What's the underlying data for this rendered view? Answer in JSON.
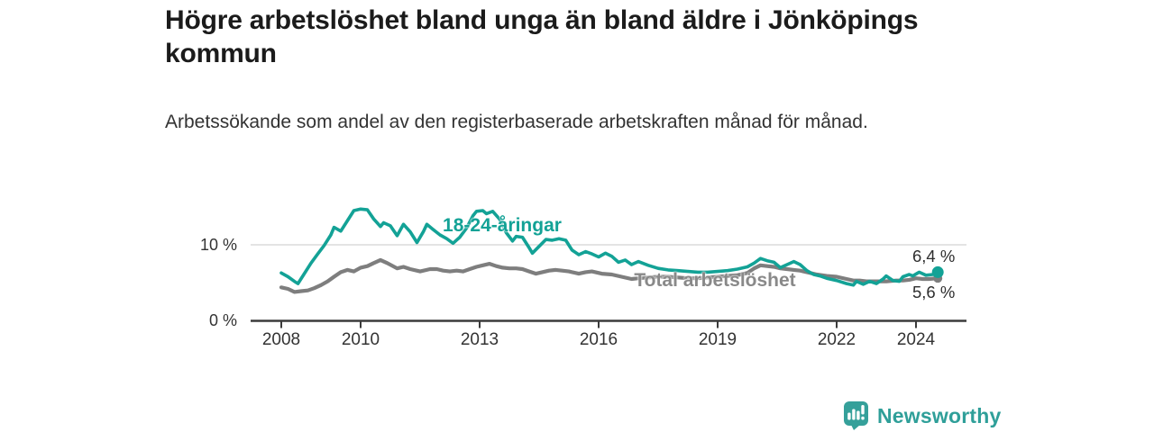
{
  "header": {
    "title": "Högre arbetslöshet bland unga än bland äldre i Jönköpings kommun",
    "subtitle": "Arbetssökande som andel av den registerbaserade arbetskraften månad för månad."
  },
  "chart": {
    "y_tick_top": "10 %",
    "y_tick_bottom": "0 %",
    "series_label_youth": "18-24-åringar",
    "series_label_total": "Total arbetslöshet",
    "end_value_youth": "6,4 %",
    "end_value_total": "5,6 %"
  },
  "footer": {
    "brand": "Newsworthy"
  },
  "colors": {
    "teal_line": "#13a296",
    "gray_line": "#7e7e7e",
    "gray_label": "#898989",
    "grid": "#dcdcdc",
    "axis": "#3b3b3b",
    "tick_text": "#333333",
    "logo_teal": "#35a09a"
  },
  "chart_data": {
    "type": "line",
    "title": "Högre arbetslöshet bland unga än bland äldre i Jönköpings kommun",
    "subtitle": "Arbetssökande som andel av den registerbaserade arbetskraften månad för månad.",
    "unit": "%",
    "xlim": [
      2008,
      2024.6
    ],
    "ylim": [
      0,
      16.5
    ],
    "x_ticks": [
      2008,
      2010,
      2013,
      2016,
      2019,
      2022,
      2024
    ],
    "y_ticks": [
      {
        "value": 0,
        "label": "0 %"
      },
      {
        "value": 10,
        "label": "10 %"
      }
    ],
    "grid": "single horizontal gridline at 10 %",
    "legend": "inline labels next to lines, end values labelled at last point",
    "series": [
      {
        "name": "Total arbetslöshet",
        "color": "#7e7e7e",
        "end_value": 5.6,
        "end_label": "5,6 %",
        "points": [
          [
            2008.0,
            4.4
          ],
          [
            2008.17,
            4.2
          ],
          [
            2008.33,
            3.8
          ],
          [
            2008.5,
            3.9
          ],
          [
            2008.67,
            4.0
          ],
          [
            2008.83,
            4.3
          ],
          [
            2009.0,
            4.7
          ],
          [
            2009.17,
            5.2
          ],
          [
            2009.33,
            5.8
          ],
          [
            2009.5,
            6.4
          ],
          [
            2009.67,
            6.7
          ],
          [
            2009.83,
            6.5
          ],
          [
            2010.0,
            7.0
          ],
          [
            2010.17,
            7.2
          ],
          [
            2010.33,
            7.6
          ],
          [
            2010.5,
            8.0
          ],
          [
            2010.67,
            7.6
          ],
          [
            2010.92,
            6.9
          ],
          [
            2011.08,
            7.1
          ],
          [
            2011.25,
            6.8
          ],
          [
            2011.5,
            6.5
          ],
          [
            2011.75,
            6.8
          ],
          [
            2011.92,
            6.8
          ],
          [
            2012.08,
            6.6
          ],
          [
            2012.25,
            6.5
          ],
          [
            2012.42,
            6.6
          ],
          [
            2012.58,
            6.5
          ],
          [
            2012.75,
            6.8
          ],
          [
            2012.92,
            7.1
          ],
          [
            2013.08,
            7.3
          ],
          [
            2013.25,
            7.5
          ],
          [
            2013.42,
            7.2
          ],
          [
            2013.58,
            7.0
          ],
          [
            2013.75,
            6.9
          ],
          [
            2013.92,
            6.9
          ],
          [
            2014.08,
            6.8
          ],
          [
            2014.25,
            6.5
          ],
          [
            2014.42,
            6.2
          ],
          [
            2014.58,
            6.4
          ],
          [
            2014.75,
            6.6
          ],
          [
            2014.92,
            6.7
          ],
          [
            2015.08,
            6.6
          ],
          [
            2015.25,
            6.5
          ],
          [
            2015.5,
            6.2
          ],
          [
            2015.67,
            6.4
          ],
          [
            2015.83,
            6.5
          ],
          [
            2016.08,
            6.2
          ],
          [
            2016.33,
            6.1
          ],
          [
            2016.58,
            5.8
          ],
          [
            2016.83,
            5.5
          ],
          [
            2017.0,
            5.6
          ],
          [
            2017.25,
            5.7
          ],
          [
            2017.5,
            5.8
          ],
          [
            2017.75,
            5.8
          ],
          [
            2018.0,
            5.7
          ],
          [
            2018.25,
            5.6
          ],
          [
            2018.5,
            5.6
          ],
          [
            2018.75,
            5.7
          ],
          [
            2019.0,
            5.8
          ],
          [
            2019.25,
            5.9
          ],
          [
            2019.5,
            6.0
          ],
          [
            2019.75,
            6.3
          ],
          [
            2019.92,
            6.9
          ],
          [
            2020.08,
            7.3
          ],
          [
            2020.25,
            7.2
          ],
          [
            2020.42,
            7.1
          ],
          [
            2020.58,
            6.9
          ],
          [
            2020.75,
            6.8
          ],
          [
            2020.92,
            6.7
          ],
          [
            2021.08,
            6.6
          ],
          [
            2021.25,
            6.4
          ],
          [
            2021.5,
            6.1
          ],
          [
            2021.75,
            5.9
          ],
          [
            2022.0,
            5.8
          ],
          [
            2022.25,
            5.5
          ],
          [
            2022.42,
            5.3
          ],
          [
            2022.58,
            5.3
          ],
          [
            2022.75,
            5.2
          ],
          [
            2023.0,
            5.2
          ],
          [
            2023.25,
            5.2
          ],
          [
            2023.5,
            5.3
          ],
          [
            2023.67,
            5.3
          ],
          [
            2023.83,
            5.4
          ],
          [
            2024.0,
            5.6
          ],
          [
            2024.17,
            5.5
          ],
          [
            2024.33,
            5.5
          ],
          [
            2024.55,
            5.6
          ]
        ]
      },
      {
        "name": "18-24-åringar",
        "color": "#13a296",
        "end_value": 6.4,
        "end_label": "6,4 %",
        "points": [
          [
            2008.0,
            6.3
          ],
          [
            2008.17,
            5.8
          ],
          [
            2008.33,
            5.2
          ],
          [
            2008.42,
            4.9
          ],
          [
            2008.58,
            6.2
          ],
          [
            2008.75,
            7.6
          ],
          [
            2008.92,
            8.8
          ],
          [
            2009.08,
            9.9
          ],
          [
            2009.25,
            11.3
          ],
          [
            2009.33,
            12.3
          ],
          [
            2009.5,
            11.8
          ],
          [
            2009.67,
            13.2
          ],
          [
            2009.83,
            14.5
          ],
          [
            2010.0,
            14.7
          ],
          [
            2010.17,
            14.6
          ],
          [
            2010.33,
            13.4
          ],
          [
            2010.5,
            12.4
          ],
          [
            2010.58,
            12.9
          ],
          [
            2010.75,
            12.5
          ],
          [
            2010.92,
            11.2
          ],
          [
            2011.08,
            12.7
          ],
          [
            2011.25,
            11.7
          ],
          [
            2011.42,
            10.3
          ],
          [
            2011.58,
            11.7
          ],
          [
            2011.67,
            12.7
          ],
          [
            2011.83,
            12.0
          ],
          [
            2012.0,
            11.3
          ],
          [
            2012.17,
            10.8
          ],
          [
            2012.33,
            10.2
          ],
          [
            2012.5,
            11.0
          ],
          [
            2012.67,
            12.2
          ],
          [
            2012.83,
            13.8
          ],
          [
            2012.92,
            14.4
          ],
          [
            2013.08,
            14.5
          ],
          [
            2013.17,
            14.1
          ],
          [
            2013.33,
            14.4
          ],
          [
            2013.5,
            13.4
          ],
          [
            2013.67,
            11.6
          ],
          [
            2013.83,
            10.5
          ],
          [
            2013.92,
            11.1
          ],
          [
            2014.08,
            11.0
          ],
          [
            2014.25,
            9.6
          ],
          [
            2014.33,
            8.9
          ],
          [
            2014.5,
            9.8
          ],
          [
            2014.67,
            10.7
          ],
          [
            2014.83,
            10.6
          ],
          [
            2015.0,
            10.8
          ],
          [
            2015.17,
            10.6
          ],
          [
            2015.33,
            9.3
          ],
          [
            2015.5,
            8.7
          ],
          [
            2015.67,
            9.1
          ],
          [
            2015.83,
            8.8
          ],
          [
            2016.0,
            8.4
          ],
          [
            2016.17,
            8.9
          ],
          [
            2016.33,
            8.5
          ],
          [
            2016.5,
            7.7
          ],
          [
            2016.67,
            8.0
          ],
          [
            2016.83,
            7.4
          ],
          [
            2017.0,
            7.8
          ],
          [
            2017.25,
            7.3
          ],
          [
            2017.5,
            6.9
          ],
          [
            2017.75,
            6.7
          ],
          [
            2018.0,
            6.6
          ],
          [
            2018.25,
            6.5
          ],
          [
            2018.5,
            6.4
          ],
          [
            2018.75,
            6.4
          ],
          [
            2019.0,
            6.5
          ],
          [
            2019.25,
            6.6
          ],
          [
            2019.5,
            6.8
          ],
          [
            2019.75,
            7.1
          ],
          [
            2019.92,
            7.6
          ],
          [
            2020.08,
            8.2
          ],
          [
            2020.25,
            7.9
          ],
          [
            2020.42,
            7.7
          ],
          [
            2020.58,
            7.0
          ],
          [
            2020.75,
            7.4
          ],
          [
            2020.92,
            7.8
          ],
          [
            2021.08,
            7.4
          ],
          [
            2021.25,
            6.6
          ],
          [
            2021.42,
            6.1
          ],
          [
            2021.58,
            5.9
          ],
          [
            2021.75,
            5.6
          ],
          [
            2022.0,
            5.3
          ],
          [
            2022.25,
            4.9
          ],
          [
            2022.42,
            4.7
          ],
          [
            2022.5,
            5.2
          ],
          [
            2022.67,
            4.8
          ],
          [
            2022.83,
            5.2
          ],
          [
            2023.0,
            4.9
          ],
          [
            2023.17,
            5.5
          ],
          [
            2023.25,
            5.9
          ],
          [
            2023.42,
            5.3
          ],
          [
            2023.58,
            5.2
          ],
          [
            2023.67,
            5.8
          ],
          [
            2023.83,
            6.1
          ],
          [
            2023.92,
            5.9
          ],
          [
            2024.08,
            6.4
          ],
          [
            2024.25,
            6.0
          ],
          [
            2024.42,
            6.1
          ],
          [
            2024.55,
            6.4
          ]
        ]
      }
    ]
  }
}
